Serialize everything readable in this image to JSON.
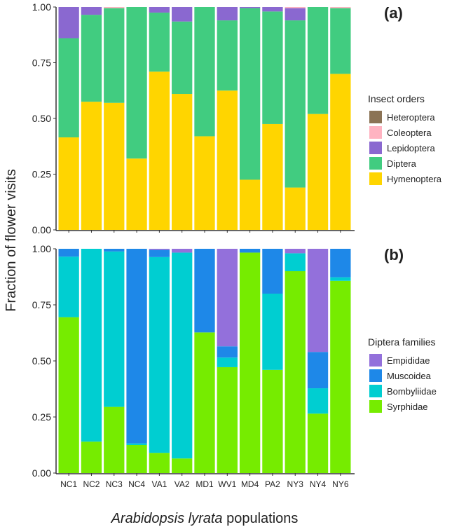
{
  "chart_data": [
    {
      "type": "bar",
      "stacked": true,
      "panel_label": "(a)",
      "legend_title": "Insect orders",
      "ylabel": "Fraction of flower visits",
      "xlabel": "Arabidopsis lyrata populations",
      "ylim": [
        0,
        1
      ],
      "yticks": [
        "0.00",
        "0.25",
        "0.50",
        "0.75",
        "1.00"
      ],
      "legend_placement": "right",
      "categories": [
        "NC1",
        "NC2",
        "NC3",
        "NC4",
        "VA1",
        "VA2",
        "MD1",
        "WV1",
        "MD4",
        "PA2",
        "NY3",
        "NY4",
        "NY6"
      ],
      "series": [
        {
          "name": "Hymenoptera",
          "color": "#FFD500",
          "values": [
            0.415,
            0.575,
            0.57,
            0.32,
            0.71,
            0.61,
            0.42,
            0.625,
            0.225,
            0.475,
            0.19,
            0.52,
            0.7
          ]
        },
        {
          "name": "Diptera",
          "color": "#41CC80",
          "values": [
            0.445,
            0.39,
            0.425,
            0.68,
            0.265,
            0.325,
            0.58,
            0.315,
            0.77,
            0.505,
            0.75,
            0.48,
            0.295
          ]
        },
        {
          "name": "Lepidoptera",
          "color": "#8A68D0",
          "values": [
            0.14,
            0.035,
            0,
            0,
            0.025,
            0.065,
            0,
            0.06,
            0.005,
            0.02,
            0.055,
            0,
            0
          ]
        },
        {
          "name": "Coleoptera",
          "color": "#FFB3C1",
          "values": [
            0,
            0,
            0.005,
            0,
            0,
            0,
            0,
            0,
            0,
            0,
            0.005,
            0,
            0.005
          ]
        },
        {
          "name": "Heteroptera",
          "color": "#8B7355",
          "values": [
            0,
            0,
            0,
            0,
            0,
            0,
            0,
            0,
            0,
            0,
            0,
            0,
            0
          ]
        }
      ]
    },
    {
      "type": "bar",
      "stacked": true,
      "panel_label": "(b)",
      "legend_title": "Diptera families",
      "ylim": [
        0,
        1
      ],
      "yticks": [
        "0.00",
        "0.25",
        "0.50",
        "0.75",
        "1.00"
      ],
      "legend_placement": "right",
      "categories": [
        "NC1",
        "NC2",
        "NC3",
        "NC4",
        "VA1",
        "VA2",
        "MD1",
        "WV1",
        "MD4",
        "PA2",
        "NY3",
        "NY4",
        "NY6"
      ],
      "series": [
        {
          "name": "Syrphidae",
          "color": "#76EC00",
          "values": [
            0.695,
            0.14,
            0.295,
            0.125,
            0.09,
            0.065,
            0.627,
            0.472,
            0.983,
            0.46,
            0.9,
            0.265,
            0.857
          ]
        },
        {
          "name": "Bombyliidae",
          "color": "#00CED1",
          "values": [
            0.27,
            0.86,
            0.693,
            0.007,
            0.873,
            0.918,
            0,
            0.043,
            0,
            0.34,
            0.08,
            0.113,
            0.016
          ]
        },
        {
          "name": "Muscoidea",
          "color": "#1E88E8",
          "values": [
            0.035,
            0,
            0.012,
            0.868,
            0.032,
            0,
            0.373,
            0.05,
            0.017,
            0.2,
            0,
            0.162,
            0.127
          ]
        },
        {
          "name": "Empididae",
          "color": "#9370DB",
          "values": [
            0,
            0,
            0,
            0,
            0.005,
            0.017,
            0,
            0.435,
            0,
            0,
            0.02,
            0.46,
            0
          ]
        }
      ]
    }
  ]
}
